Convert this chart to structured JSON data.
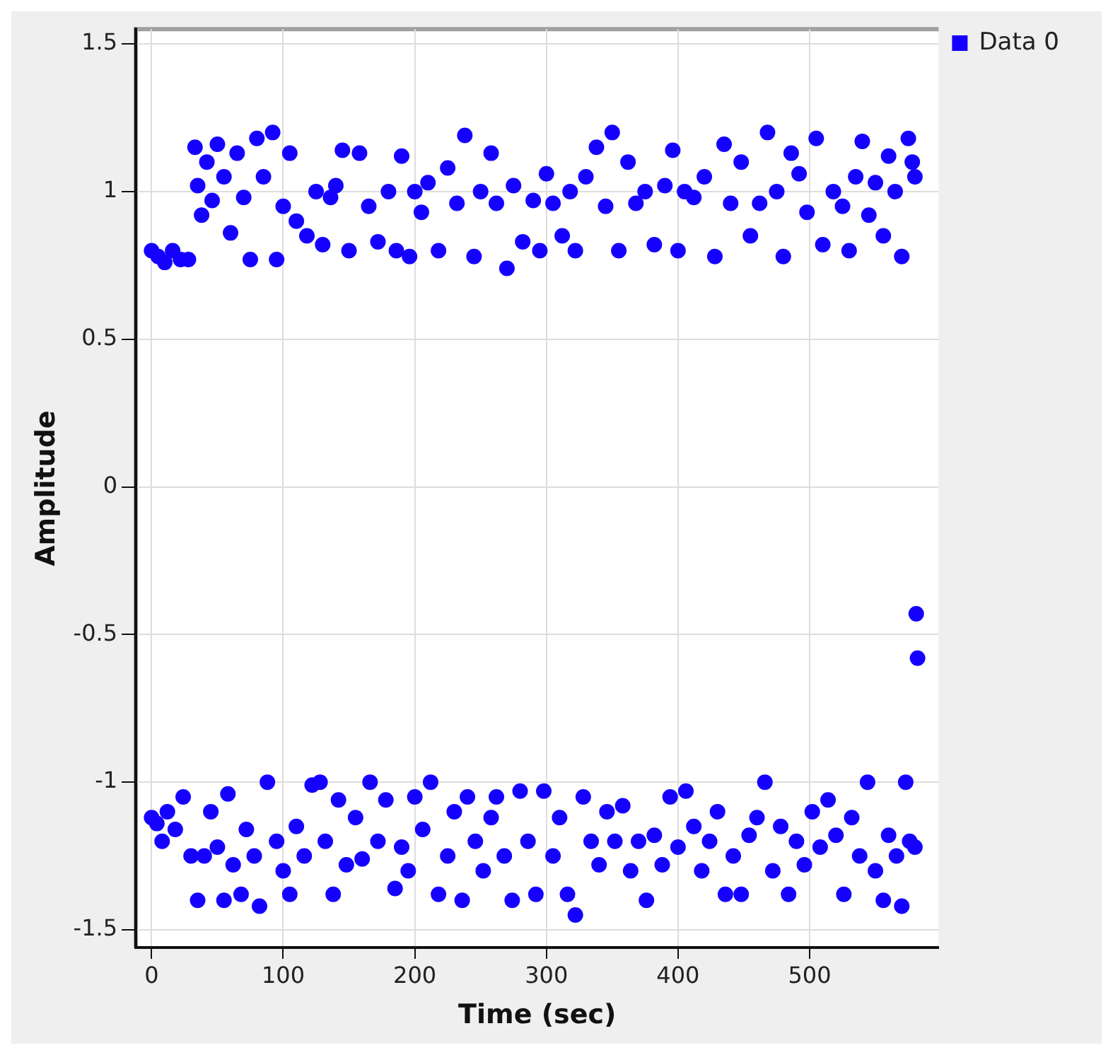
{
  "chart_data": {
    "type": "scatter",
    "xlabel": "Time (sec)",
    "ylabel": "Amplitude",
    "xlim": [
      -12,
      598
    ],
    "xticks": [
      0,
      100,
      200,
      300,
      400,
      500
    ],
    "ylim": [
      -1.56,
      1.55
    ],
    "yticks": [
      -1.5,
      -1,
      -0.5,
      0,
      0.5,
      1,
      1.5
    ],
    "grid": true,
    "legend": "top right",
    "marker": "circle",
    "series": [
      {
        "name": "Data 0",
        "color": "#1500ff",
        "x": [
          0,
          5,
          10,
          16,
          22,
          28,
          33,
          35,
          38,
          42,
          46,
          50,
          55,
          60,
          65,
          70,
          75,
          80,
          85,
          92,
          95,
          100,
          105,
          110,
          118,
          125,
          130,
          136,
          140,
          145,
          150,
          158,
          165,
          172,
          180,
          186,
          190,
          196,
          200,
          205,
          210,
          218,
          225,
          232,
          238,
          245,
          250,
          258,
          262,
          270,
          275,
          282,
          290,
          295,
          300,
          305,
          312,
          318,
          322,
          330,
          338,
          345,
          350,
          355,
          362,
          368,
          375,
          382,
          390,
          396,
          400,
          405,
          412,
          420,
          428,
          435,
          440,
          448,
          455,
          462,
          468,
          475,
          480,
          486,
          492,
          498,
          505,
          510,
          518,
          525,
          530,
          535,
          540,
          545,
          550,
          556,
          560,
          565,
          570,
          575,
          578,
          580,
          0,
          4,
          8,
          12,
          18,
          24,
          30,
          35,
          40,
          45,
          50,
          55,
          58,
          62,
          68,
          72,
          78,
          82,
          88,
          95,
          100,
          105,
          110,
          116,
          122,
          128,
          132,
          138,
          142,
          148,
          155,
          160,
          166,
          172,
          178,
          185,
          190,
          195,
          200,
          206,
          212,
          218,
          225,
          230,
          236,
          240,
          246,
          252,
          258,
          262,
          268,
          274,
          280,
          286,
          292,
          298,
          305,
          310,
          316,
          322,
          328,
          334,
          340,
          346,
          352,
          358,
          364,
          370,
          376,
          382,
          388,
          394,
          400,
          406,
          412,
          418,
          424,
          430,
          436,
          442,
          448,
          454,
          460,
          466,
          472,
          478,
          484,
          490,
          496,
          502,
          508,
          514,
          520,
          526,
          532,
          538,
          544,
          550,
          556,
          560,
          566,
          570,
          573,
          576,
          580,
          581,
          582
        ],
        "values": [
          0.8,
          0.78,
          0.76,
          0.8,
          0.77,
          0.77,
          1.15,
          1.02,
          0.92,
          1.1,
          0.97,
          1.16,
          1.05,
          0.86,
          1.13,
          0.98,
          0.77,
          1.18,
          1.05,
          1.2,
          0.77,
          0.95,
          1.13,
          0.9,
          0.85,
          1.0,
          0.82,
          0.98,
          1.02,
          1.14,
          0.8,
          1.13,
          0.95,
          0.83,
          1.0,
          0.8,
          1.12,
          0.78,
          1.0,
          0.93,
          1.03,
          0.8,
          1.08,
          0.96,
          1.19,
          0.78,
          1.0,
          1.13,
          0.96,
          0.74,
          1.02,
          0.83,
          0.97,
          0.8,
          1.06,
          0.96,
          0.85,
          1.0,
          0.8,
          1.05,
          1.15,
          0.95,
          1.2,
          0.8,
          1.1,
          0.96,
          1.0,
          0.82,
          1.02,
          1.14,
          0.8,
          1.0,
          0.98,
          1.05,
          0.78,
          1.16,
          0.96,
          1.1,
          0.85,
          0.96,
          1.2,
          1.0,
          0.78,
          1.13,
          1.06,
          0.93,
          1.18,
          0.82,
          1.0,
          0.95,
          0.8,
          1.05,
          1.17,
          0.92,
          1.03,
          0.85,
          1.12,
          1.0,
          0.78,
          1.18,
          1.1,
          1.05,
          -1.12,
          -1.14,
          -1.2,
          -1.1,
          -1.16,
          -1.05,
          -1.25,
          -1.4,
          -1.25,
          -1.1,
          -1.22,
          -1.4,
          -1.04,
          -1.28,
          -1.38,
          -1.16,
          -1.25,
          -1.42,
          -1.0,
          -1.2,
          -1.3,
          -1.38,
          -1.15,
          -1.25,
          -1.01,
          -1.0,
          -1.2,
          -1.38,
          -1.06,
          -1.28,
          -1.12,
          -1.26,
          -1.0,
          -1.2,
          -1.06,
          -1.36,
          -1.22,
          -1.3,
          -1.05,
          -1.16,
          -1.0,
          -1.38,
          -1.25,
          -1.1,
          -1.4,
          -1.05,
          -1.2,
          -1.3,
          -1.12,
          -1.05,
          -1.25,
          -1.4,
          -1.03,
          -1.2,
          -1.38,
          -1.03,
          -1.25,
          -1.12,
          -1.38,
          -1.45,
          -1.05,
          -1.2,
          -1.28,
          -1.1,
          -1.2,
          -1.08,
          -1.3,
          -1.2,
          -1.4,
          -1.18,
          -1.28,
          -1.05,
          -1.22,
          -1.03,
          -1.15,
          -1.3,
          -1.2,
          -1.1,
          -1.38,
          -1.25,
          -1.38,
          -1.18,
          -1.12,
          -1.0,
          -1.3,
          -1.15,
          -1.38,
          -1.2,
          -1.28,
          -1.1,
          -1.22,
          -1.06,
          -1.18,
          -1.38,
          -1.12,
          -1.25,
          -1.0,
          -1.3,
          -1.4,
          -1.18,
          -1.25,
          -1.42,
          -1.0,
          -1.2,
          -1.22,
          -0.43,
          -0.58
        ]
      }
    ]
  }
}
